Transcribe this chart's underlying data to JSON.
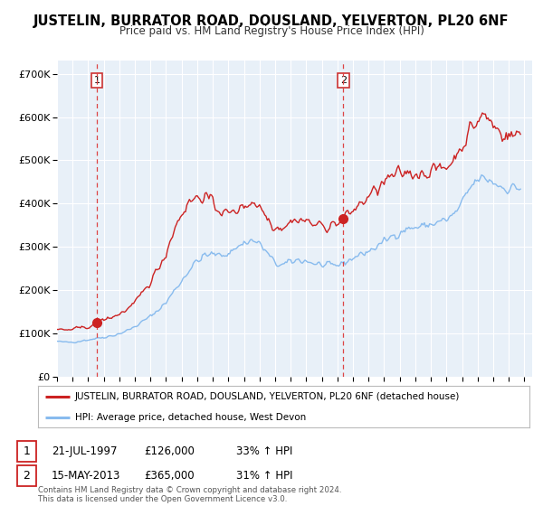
{
  "title": "JUSTELIN, BURRATOR ROAD, DOUSLAND, YELVERTON, PL20 6NF",
  "subtitle": "Price paid vs. HM Land Registry's House Price Index (HPI)",
  "property_label": "JUSTELIN, BURRATOR ROAD, DOUSLAND, YELVERTON, PL20 6NF (detached house)",
  "hpi_label": "HPI: Average price, detached house, West Devon",
  "annotation1_date": "21-JUL-1997",
  "annotation1_price": "£126,000",
  "annotation1_hpi": "33% ↑ HPI",
  "annotation2_date": "15-MAY-2013",
  "annotation2_price": "£365,000",
  "annotation2_hpi": "31% ↑ HPI",
  "sale1_x": 1997.55,
  "sale1_y": 126000,
  "sale2_x": 2013.37,
  "sale2_y": 365000,
  "ylim": [
    0,
    730000
  ],
  "xlim": [
    1995.0,
    2025.5
  ],
  "yticks": [
    0,
    100000,
    200000,
    300000,
    400000,
    500000,
    600000,
    700000
  ],
  "ytick_labels": [
    "£0",
    "£100K",
    "£200K",
    "£300K",
    "£400K",
    "£500K",
    "£600K",
    "£700K"
  ],
  "xticks": [
    1995,
    1996,
    1997,
    1998,
    1999,
    2000,
    2001,
    2002,
    2003,
    2004,
    2005,
    2006,
    2007,
    2008,
    2009,
    2010,
    2011,
    2012,
    2013,
    2014,
    2015,
    2016,
    2017,
    2018,
    2019,
    2020,
    2021,
    2022,
    2023,
    2024,
    2025
  ],
  "property_color": "#cc2222",
  "hpi_color": "#88bbee",
  "background_color": "#e8f0f8",
  "grid_color": "#ffffff",
  "vline_color": "#dd4444",
  "footnote": "Contains HM Land Registry data © Crown copyright and database right 2024.\nThis data is licensed under the Open Government Licence v3.0."
}
